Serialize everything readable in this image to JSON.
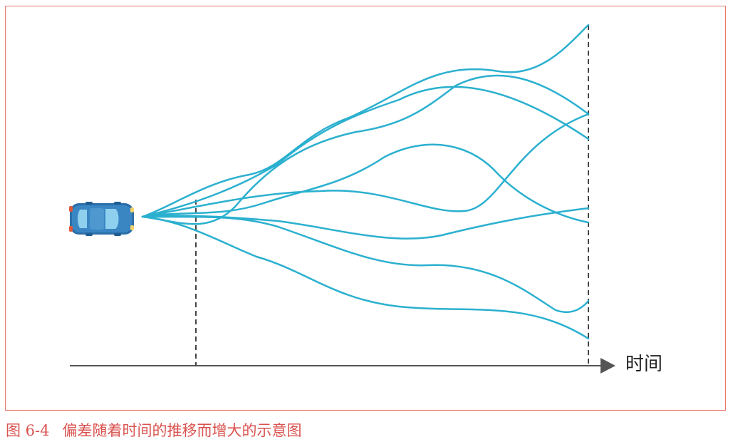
{
  "figure": {
    "axis_label": "时间",
    "caption_number": "图 6-4",
    "caption_text": "偏差随着时间的推移而增大的示意图"
  },
  "colors": {
    "trajectory": "#2bb0cf",
    "axis": "#555555",
    "dashed_marker": "#444444",
    "frame": "#e8766b",
    "caption": "#d9534f",
    "car_body": "#3a86c3"
  },
  "icons": {
    "vehicle": "car-icon",
    "axis_arrow": "arrow-right-icon"
  }
}
